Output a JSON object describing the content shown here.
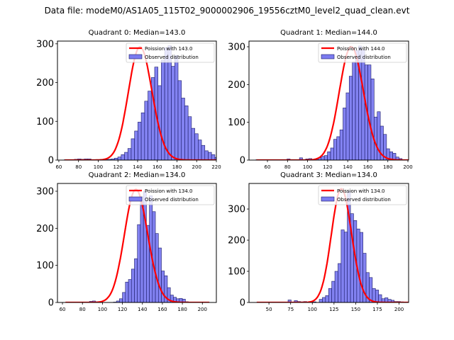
{
  "suptitle": "Data file: modeM0/AS1A05_115T02_9000002906_19556cztM0_level2_quad_clean.evt",
  "colors": {
    "bar_fill": "#7b7bf0",
    "bar_edge": "#1a1a66",
    "curve": "#ff0000"
  },
  "chart_data": [
    {
      "type": "bar",
      "title": "Quadrant 0: Median=143.0",
      "median": 143.0,
      "legend": [
        "Poission with 143.0",
        "Observed distribution"
      ],
      "legend_position": "top-right",
      "xlim": [
        58.6,
        220
      ],
      "ylim": [
        0,
        307
      ],
      "xticks": [
        60,
        80,
        100,
        120,
        140,
        160,
        180,
        200,
        220
      ],
      "yticks": [
        0,
        100,
        200,
        300
      ],
      "bin_start": 65.5,
      "bin_width": 3.4,
      "values": [
        1,
        0,
        0,
        2,
        3,
        2,
        3,
        3,
        0,
        1,
        0,
        1,
        1,
        2,
        3,
        5,
        8,
        14,
        20,
        30,
        55,
        75,
        98,
        122,
        152,
        178,
        213,
        240,
        192,
        258,
        290,
        295,
        242,
        270,
        205,
        160,
        140,
        112,
        82,
        68,
        52,
        38,
        24,
        20,
        14,
        7,
        4,
        3,
        2,
        1,
        1,
        0,
        0,
        0
      ],
      "poisson_peak": 292
    },
    {
      "type": "bar",
      "title": "Quadrant 1: Median=144.0",
      "median": 144.0,
      "legend": [
        "Poission with 144.0",
        "Observed distribution"
      ],
      "legend_position": "top-right",
      "xlim": [
        41.6,
        200.7
      ],
      "ylim": [
        0,
        315
      ],
      "xticks": [
        60,
        80,
        100,
        120,
        140,
        160,
        180,
        200
      ],
      "yticks": [
        0,
        100,
        200,
        300
      ],
      "bin_start": 48.5,
      "bin_width": 3.1,
      "values": [
        1,
        0,
        0,
        0,
        0,
        0,
        0,
        0,
        0,
        0,
        3,
        0,
        0,
        0,
        6,
        1,
        3,
        4,
        0,
        3,
        6,
        10,
        12,
        22,
        32,
        55,
        62,
        80,
        138,
        178,
        222,
        260,
        290,
        302,
        292,
        252,
        252,
        215,
        114,
        128,
        90,
        68,
        30,
        22,
        18,
        8,
        4,
        1,
        1,
        0,
        0
      ],
      "poisson_peak": 300
    },
    {
      "type": "bar",
      "title": "Quadrant 2: Median=134.0",
      "median": 134.0,
      "legend": [
        "Poission with 134.0",
        "Observed distribution"
      ],
      "legend_position": "top-right",
      "xlim": [
        55,
        214
      ],
      "ylim": [
        0,
        321
      ],
      "xticks": [
        60,
        80,
        100,
        120,
        140,
        160,
        180,
        200
      ],
      "yticks": [
        0,
        100,
        200,
        300
      ],
      "bin_start": 63,
      "bin_width": 3.0,
      "values": [
        0,
        0,
        0,
        0,
        0,
        0,
        0,
        1,
        3,
        4,
        2,
        2,
        0,
        0,
        0,
        0,
        1,
        4,
        10,
        27,
        55,
        62,
        90,
        118,
        210,
        285,
        300,
        208,
        288,
        245,
        186,
        147,
        85,
        72,
        40,
        20,
        14,
        10,
        11,
        9,
        2,
        1,
        0,
        0,
        0,
        0,
        0,
        0
      ],
      "poisson_peak": 305
    },
    {
      "type": "bar",
      "title": "Quadrant 3: Median=134.0",
      "median": 134.0,
      "legend": [
        "Poission with 134.0",
        "Observed distribution"
      ],
      "legend_position": "top-right",
      "xlim": [
        27,
        211
      ],
      "ylim": [
        0,
        382
      ],
      "xticks": [
        50,
        75,
        100,
        125,
        150,
        175,
        200
      ],
      "yticks": [
        0,
        100,
        200,
        300
      ],
      "bin_start": 36,
      "bin_width": 3.6,
      "values": [
        1,
        0,
        0,
        0,
        0,
        0,
        0,
        0,
        0,
        0,
        8,
        1,
        6,
        3,
        2,
        3,
        0,
        3,
        2,
        0,
        10,
        16,
        22,
        45,
        68,
        100,
        125,
        233,
        226,
        358,
        285,
        263,
        236,
        225,
        158,
        96,
        80,
        45,
        40,
        25,
        12,
        15,
        10,
        7,
        3,
        3,
        2,
        1,
        1
      ],
      "poisson_peak": 365
    }
  ]
}
